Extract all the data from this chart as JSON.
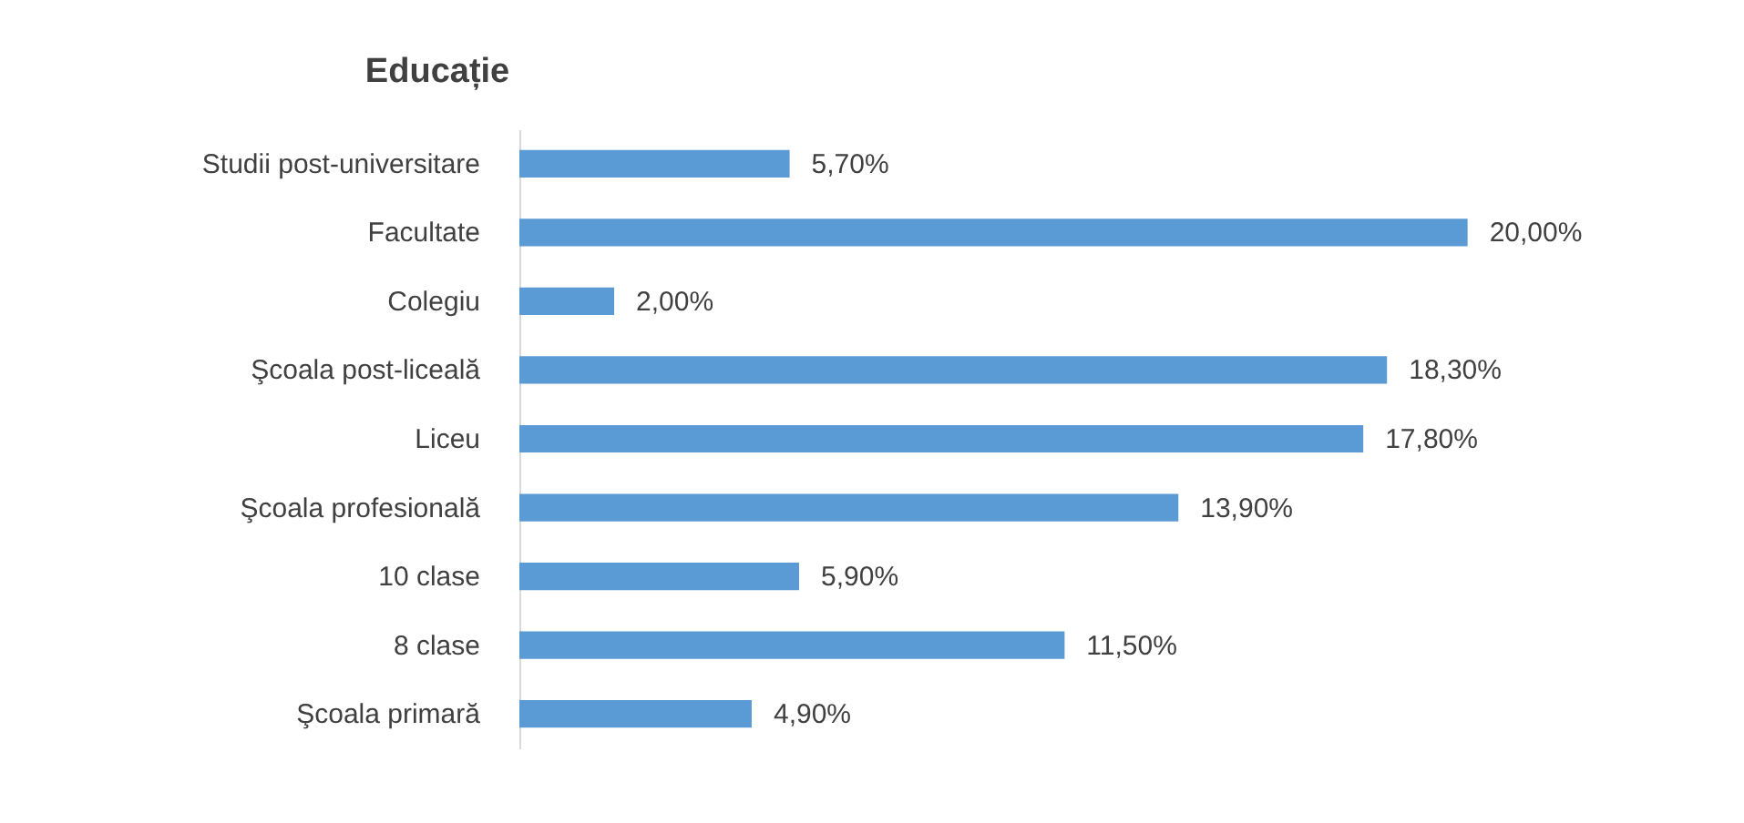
{
  "chart_data": {
    "type": "bar",
    "orientation": "horizontal",
    "title": "Educație",
    "categories": [
      "Studii post-universitare",
      "Facultate",
      "Colegiu",
      "Şcoala post-liceală",
      "Liceu",
      "Şcoala profesională",
      "10 clase",
      "8 clase",
      "Şcoala primară"
    ],
    "values": [
      5.7,
      20.0,
      2.0,
      18.3,
      17.8,
      13.9,
      5.9,
      11.5,
      4.9
    ],
    "value_labels": [
      "5,70%",
      "20,00%",
      "2,00%",
      "18,30%",
      "17,80%",
      "13,90%",
      "5,90%",
      "11,50%",
      "4,90%"
    ],
    "color": "#5b9bd5",
    "tick_labels": "y"
  }
}
